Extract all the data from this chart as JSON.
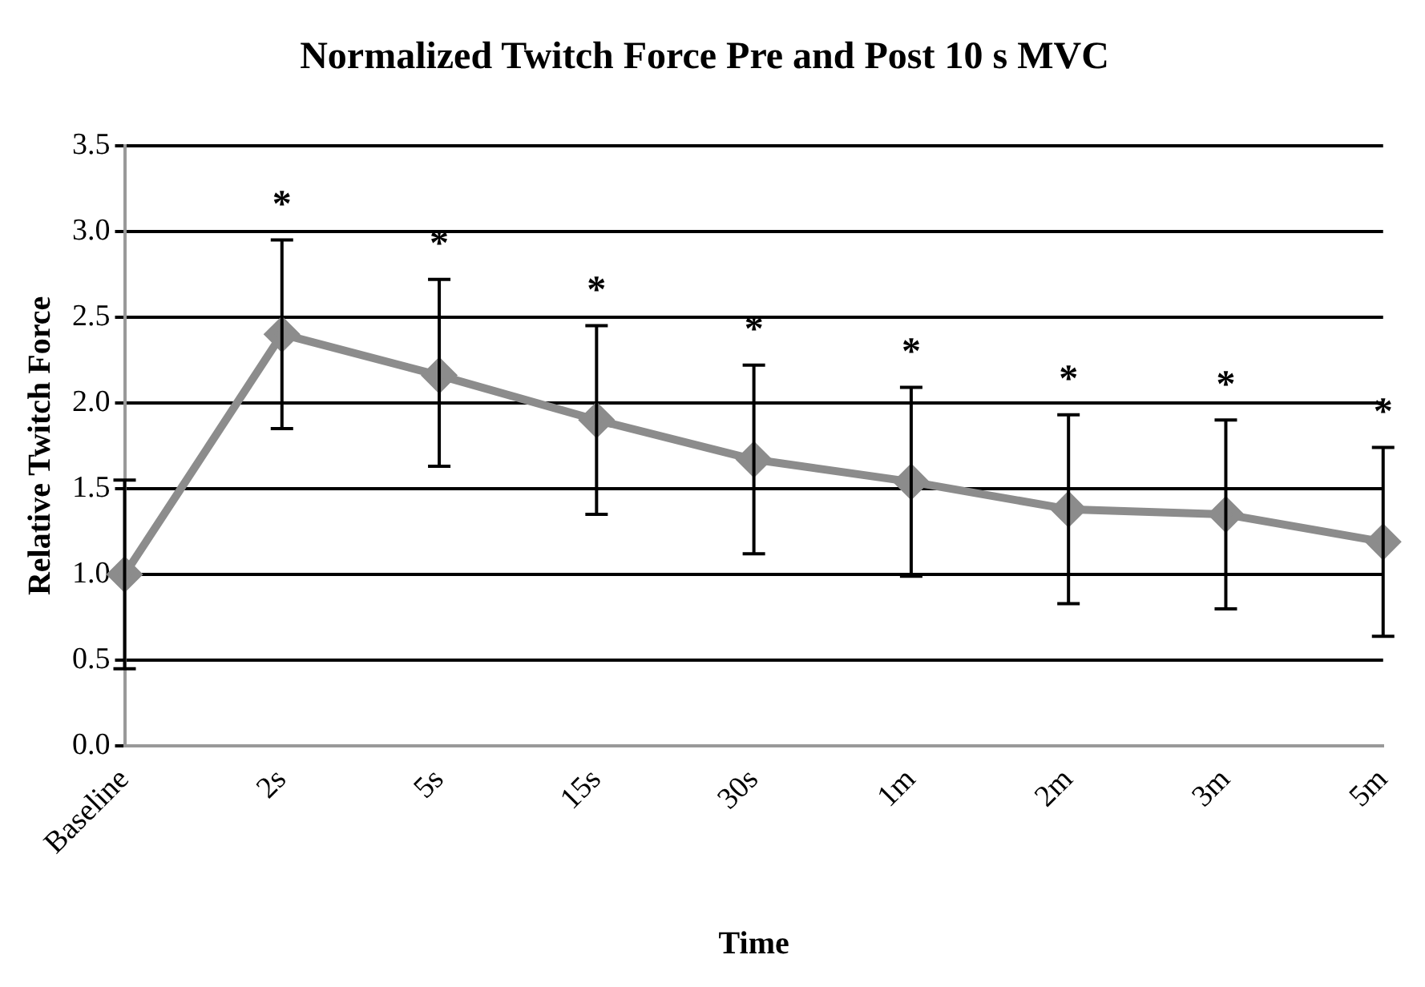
{
  "chart_data": {
    "type": "line",
    "title": "Normalized Twitch Force Pre and Post 10 s MVC",
    "xlabel": "Time",
    "ylabel": "Relative Twitch Force",
    "categories": [
      "Baseline",
      "2s",
      "5s",
      "15s",
      "30s",
      "1m",
      "2m",
      "3m",
      "5m"
    ],
    "series": [
      {
        "color": "#8c8c8c",
        "values": [
          1.0,
          2.4,
          2.16,
          1.9,
          1.67,
          1.54,
          1.38,
          1.35,
          1.19
        ],
        "errors": [
          [
            0.45,
            1.55
          ],
          [
            1.85,
            2.95
          ],
          [
            1.63,
            2.72
          ],
          [
            1.35,
            2.45
          ],
          [
            1.12,
            2.22
          ],
          [
            0.99,
            2.09
          ],
          [
            0.83,
            1.93
          ],
          [
            0.8,
            1.9
          ],
          [
            0.64,
            1.74
          ]
        ]
      }
    ],
    "ylim": [
      0,
      3.5
    ],
    "yticks": [
      {
        "value": 0,
        "label": "0.0"
      },
      {
        "value": 0.5,
        "label": "0.5"
      },
      {
        "value": 1,
        "label": "1.0"
      },
      {
        "value": 1.5,
        "label": "1.5"
      },
      {
        "value": 2,
        "label": "2.0"
      },
      {
        "value": 2.5,
        "label": "2.5"
      },
      {
        "value": 3,
        "label": "3.0"
      },
      {
        "value": 3.5,
        "label": "3.5"
      }
    ],
    "grid": "y",
    "legend": false,
    "marker": "diamond",
    "line_style": "solid",
    "annotations": [
      {
        "text": "*",
        "x": "2s",
        "y": 2.4
      },
      {
        "text": "*",
        "x": "5s",
        "y": 2.16
      },
      {
        "text": "*",
        "x": "15s",
        "y": 1.9
      },
      {
        "text": "*",
        "x": "30s",
        "y": 1.67
      },
      {
        "text": "*",
        "x": "1m",
        "y": 1.54
      },
      {
        "text": "*",
        "x": "2m",
        "y": 1.38
      },
      {
        "text": "*",
        "x": "3m",
        "y": 1.35
      },
      {
        "text": "*",
        "x": "5m",
        "y": 1.19
      }
    ]
  }
}
